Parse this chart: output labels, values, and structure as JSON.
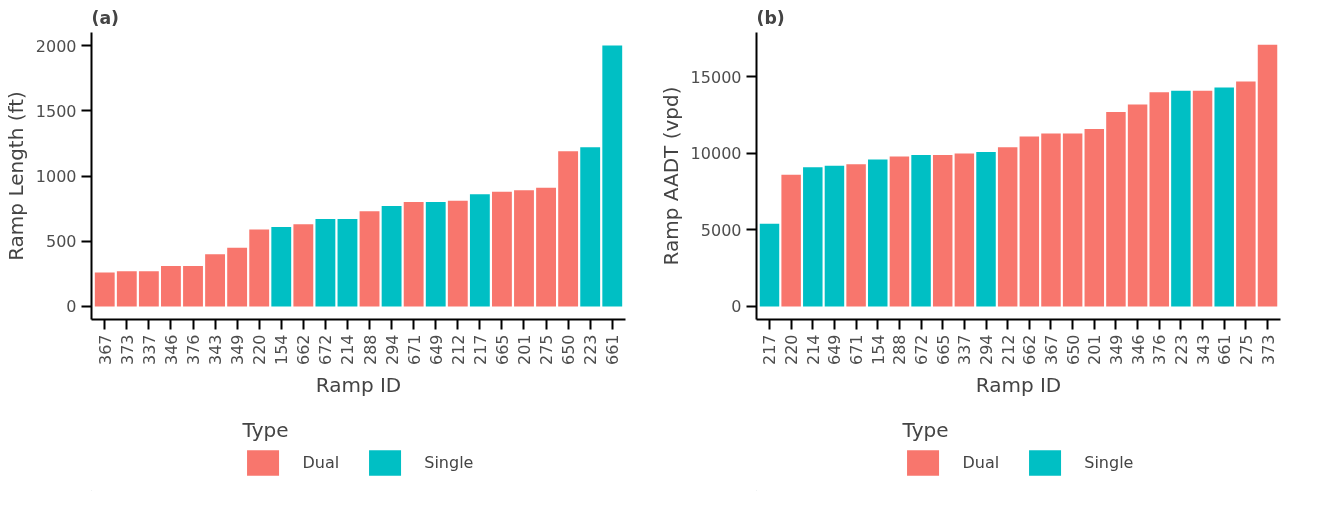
{
  "chart_data": [
    {
      "type": "bar",
      "title": "(a)",
      "xlabel": "Ramp ID",
      "ylabel": "Ramp Length (ft)",
      "legend_title": "Type",
      "legend": "bottom",
      "categories": [
        "367",
        "373",
        "337",
        "346",
        "376",
        "343",
        "349",
        "220",
        "154",
        "662",
        "672",
        "214",
        "288",
        "294",
        "671",
        "649",
        "212",
        "217",
        "665",
        "201",
        "275",
        "650",
        "223",
        "661"
      ],
      "ylim": [
        -100,
        2100
      ],
      "yticks": [
        0,
        500,
        1000,
        1500,
        2000
      ],
      "series": [
        {
          "name": "Dual",
          "color": "#f8766d",
          "values": [
            260,
            270,
            270,
            310,
            310,
            400,
            450,
            590,
            null,
            630,
            null,
            null,
            730,
            null,
            800,
            null,
            810,
            null,
            880,
            890,
            910,
            1190,
            null,
            null
          ]
        },
        {
          "name": "Single",
          "color": "#00bfc4",
          "values": [
            null,
            null,
            null,
            null,
            null,
            null,
            null,
            null,
            610,
            null,
            670,
            670,
            null,
            770,
            null,
            800,
            null,
            860,
            null,
            null,
            null,
            null,
            1220,
            2000
          ]
        }
      ]
    },
    {
      "type": "bar",
      "title": "(b)",
      "xlabel": "Ramp ID",
      "ylabel": "Ramp AADT (vpd)",
      "legend_title": "Type",
      "legend": "bottom",
      "categories": [
        "217",
        "220",
        "214",
        "649",
        "671",
        "154",
        "288",
        "672",
        "665",
        "337",
        "294",
        "212",
        "662",
        "367",
        "650",
        "201",
        "349",
        "346",
        "376",
        "223",
        "343",
        "661",
        "275",
        "373"
      ],
      "ylim": [
        -850,
        17900
      ],
      "yticks": [
        0,
        5000,
        10000,
        15000
      ],
      "series": [
        {
          "name": "Dual",
          "color": "#f8766d",
          "values": [
            null,
            8600,
            null,
            null,
            9300,
            null,
            9800,
            null,
            9900,
            10000,
            null,
            10400,
            11100,
            11300,
            11300,
            11600,
            12700,
            13200,
            14000,
            null,
            14100,
            null,
            14700,
            17100
          ]
        },
        {
          "name": "Single",
          "color": "#00bfc4",
          "values": [
            5400,
            null,
            9100,
            9200,
            null,
            9600,
            null,
            9900,
            null,
            null,
            10100,
            null,
            null,
            null,
            null,
            null,
            null,
            null,
            null,
            14100,
            null,
            14300,
            null,
            null
          ]
        }
      ]
    }
  ]
}
